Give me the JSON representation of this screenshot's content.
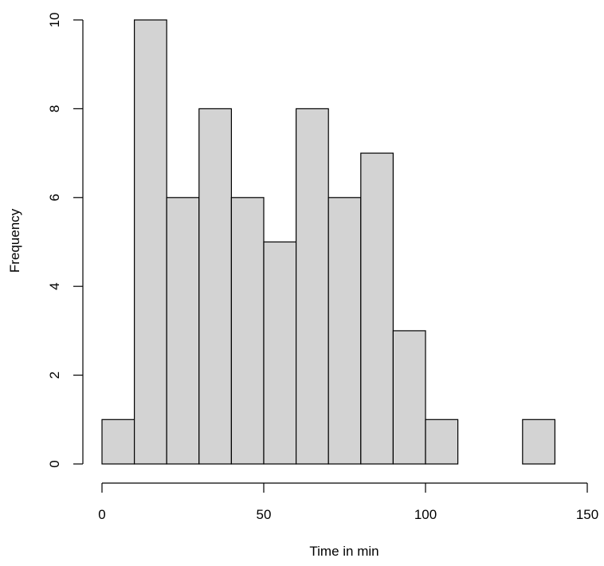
{
  "chart_data": {
    "type": "bar",
    "subtype": "histogram",
    "title": "",
    "xlabel": "Time in min",
    "ylabel": "Frequency",
    "bins": [
      {
        "start": 0,
        "end": 10,
        "count": 1
      },
      {
        "start": 10,
        "end": 20,
        "count": 10
      },
      {
        "start": 20,
        "end": 30,
        "count": 6
      },
      {
        "start": 30,
        "end": 40,
        "count": 8
      },
      {
        "start": 40,
        "end": 50,
        "count": 6
      },
      {
        "start": 50,
        "end": 60,
        "count": 5
      },
      {
        "start": 60,
        "end": 70,
        "count": 8
      },
      {
        "start": 70,
        "end": 80,
        "count": 6
      },
      {
        "start": 80,
        "end": 90,
        "count": 7
      },
      {
        "start": 90,
        "end": 100,
        "count": 3
      },
      {
        "start": 100,
        "end": 110,
        "count": 1
      },
      {
        "start": 110,
        "end": 120,
        "count": 0
      },
      {
        "start": 120,
        "end": 130,
        "count": 0
      },
      {
        "start": 130,
        "end": 140,
        "count": 1
      }
    ],
    "xlim": [
      0,
      150
    ],
    "ylim": [
      0,
      10
    ],
    "x_ticks": [
      0,
      50,
      100,
      150
    ],
    "y_ticks": [
      0,
      2,
      4,
      6,
      8,
      10
    ],
    "grid": false,
    "bar_color": "#d3d3d3",
    "edge_color": "#000000"
  }
}
